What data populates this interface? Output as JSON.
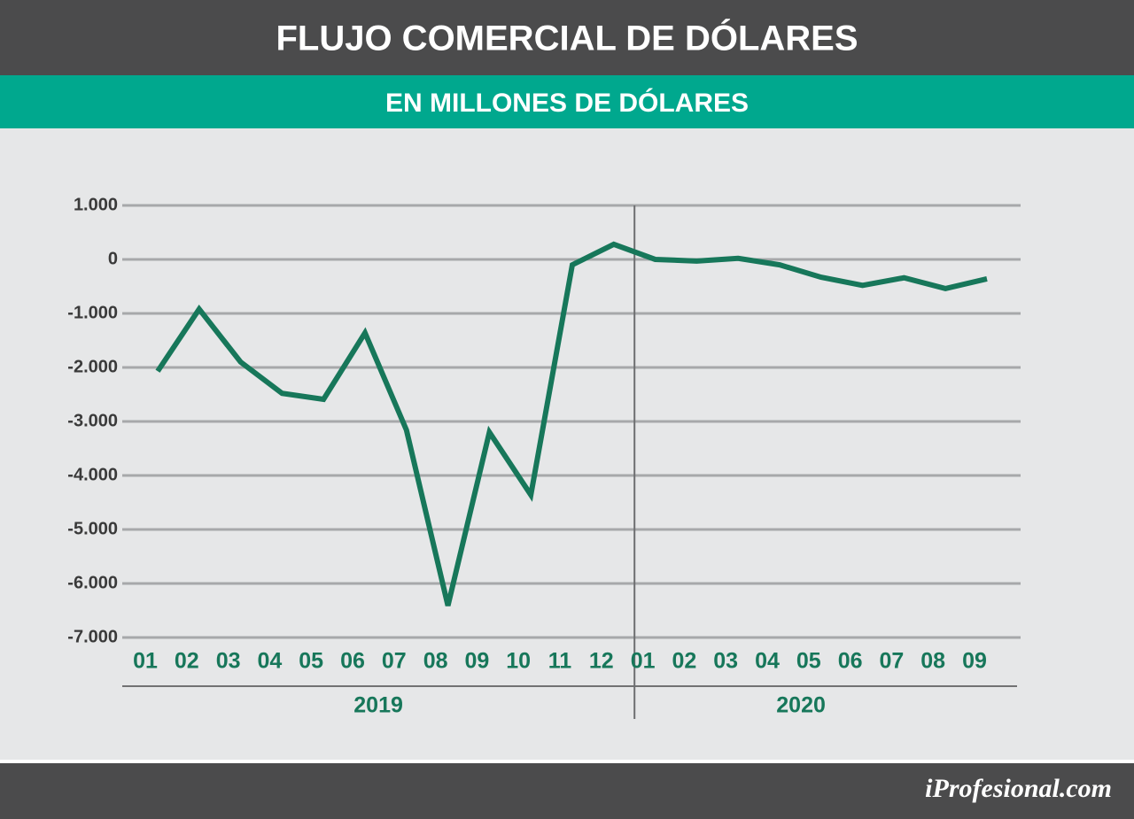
{
  "chart_data": {
    "type": "line",
    "title": "FLUJO COMERCIAL DE DÓLARES",
    "subtitle": "EN MILLONES DE DÓLARES",
    "categories": [
      "01",
      "02",
      "03",
      "04",
      "05",
      "06",
      "07",
      "08",
      "09",
      "10",
      "11",
      "12",
      "01",
      "02",
      "03",
      "04",
      "05",
      "06",
      "07",
      "08",
      "09"
    ],
    "years": [
      "2019",
      "2020"
    ],
    "series": [
      {
        "color": "#17775a",
        "values": [
          -2070,
          -920,
          -1900,
          -2480,
          -2590,
          -1360,
          -3160,
          -6410,
          -3200,
          -4360,
          -100,
          280,
          0,
          -30,
          20,
          -100,
          -330,
          -480,
          -340,
          -540,
          -360
        ]
      }
    ],
    "ylim": [
      -7000,
      1000
    ],
    "yticks": [
      {
        "value": 1000,
        "label": "1.000"
      },
      0,
      {
        "value": -1000,
        "label": "-1.000"
      },
      {
        "value": -2000,
        "label": "-2.000"
      },
      {
        "value": -3000,
        "label": "-3.000"
      },
      {
        "value": -4000,
        "label": "-4.000"
      },
      {
        "value": -5000,
        "label": "-5.000"
      },
      {
        "value": -6000,
        "label": "-6.000"
      },
      {
        "value": -7000,
        "label": "-7.000"
      }
    ],
    "grid": true,
    "source": "iProfesional.com"
  }
}
